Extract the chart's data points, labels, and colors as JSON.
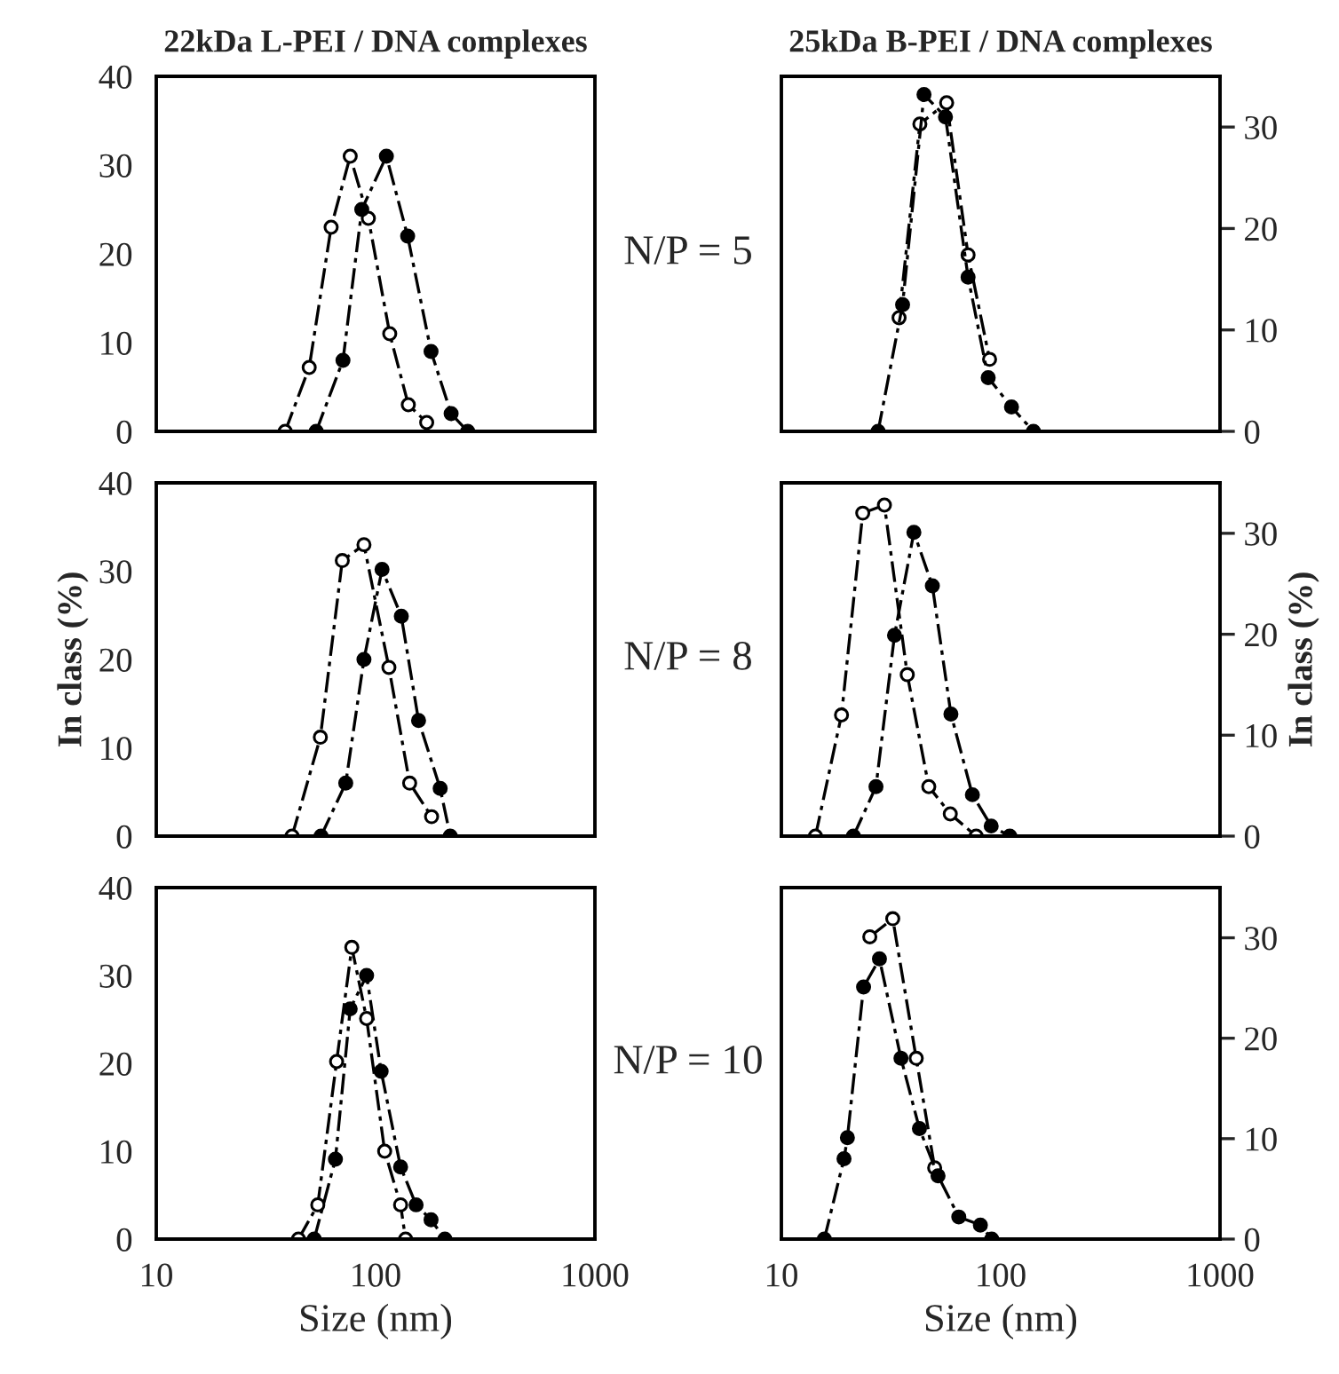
{
  "chart_data": [
    {
      "type": "line",
      "title": "22kDa L-PEI / DNA complexes",
      "annotations": [
        "N/P = 5"
      ],
      "log": "x",
      "xlim": [
        10,
        1000
      ],
      "xticks": [
        10,
        100,
        1000
      ],
      "ylim": [
        0,
        40
      ],
      "yticks": [
        0,
        10,
        20,
        30,
        40
      ],
      "tick_labels": "y",
      "marker": "circle",
      "line_style": "dashed",
      "grid": false,
      "legend": false,
      "series": [
        {
          "color": "#ffffff",
          "x": [
            38.7,
            49.8,
            62.7,
            76.6,
            92.7,
            116,
            141,
            171
          ],
          "values": [
            0,
            7.2,
            23,
            31,
            24,
            11,
            3,
            1
          ]
        },
        {
          "color": "#000000",
          "x": [
            53.6,
            71,
            86.5,
            112,
            140,
            179,
            221,
            263
          ],
          "values": [
            0,
            8,
            25,
            31,
            22,
            9,
            2,
            0
          ]
        }
      ]
    },
    {
      "type": "line",
      "title": "25kDa B-PEI / DNA complexes",
      "log": "x",
      "xlim": [
        10,
        1000
      ],
      "xticks": [
        10,
        100,
        1000
      ],
      "y2lim": [
        0,
        35
      ],
      "y2ticks": [
        0,
        10,
        20,
        30
      ],
      "tick_labels": "y",
      "marker": "circle",
      "line_style": "dashed",
      "grid": false,
      "legend": false,
      "series": [
        {
          "color": "#ffffff",
          "axis": "y2",
          "x": [
            34.4,
            42.8,
            56.7,
            71,
            89
          ],
          "values": [
            11.2,
            30.3,
            32.4,
            17.4,
            7.1
          ]
        },
        {
          "color": "#000000",
          "axis": "y2",
          "x": [
            27.6,
            35.7,
            44.7,
            56,
            71,
            87.7,
            112,
            141
          ],
          "values": [
            0,
            12.5,
            33.2,
            31,
            15.2,
            5.3,
            2.4,
            0
          ]
        }
      ]
    },
    {
      "type": "line",
      "ylabel": "In class (%)",
      "annotations": [
        "N/P = 8"
      ],
      "log": "x",
      "xlim": [
        10,
        1000
      ],
      "xticks": [
        10,
        100,
        1000
      ],
      "ylim": [
        0,
        40
      ],
      "yticks": [
        0,
        10,
        20,
        30,
        40
      ],
      "tick_labels": "y",
      "marker": "circle",
      "line_style": "dashed",
      "grid": false,
      "legend": false,
      "series": [
        {
          "color": "#ffffff",
          "x": [
            41.6,
            56,
            70.5,
            88.5,
            115,
            143,
            180
          ],
          "values": [
            0,
            11.2,
            31.2,
            33,
            19.1,
            6,
            2.2
          ]
        },
        {
          "color": "#000000",
          "x": [
            56.4,
            73.1,
            88.5,
            107,
            131,
            157,
            197,
            219
          ],
          "values": [
            0,
            6,
            20,
            30.2,
            24.9,
            13.1,
            5.4,
            0
          ]
        }
      ]
    },
    {
      "type": "line",
      "y2label": "In class (%)",
      "log": "x",
      "xlim": [
        10,
        1000
      ],
      "xticks": [
        10,
        100,
        1000
      ],
      "y2lim": [
        0,
        35
      ],
      "y2ticks": [
        0,
        10,
        20,
        30
      ],
      "tick_labels": "y",
      "marker": "circle",
      "line_style": "dashed",
      "grid": false,
      "legend": false,
      "series": [
        {
          "color": "#ffffff",
          "axis": "y2",
          "x": [
            14.3,
            18.8,
            23.5,
            29.5,
            37.5,
            47,
            58.9,
            77.3
          ],
          "values": [
            0,
            12,
            32,
            32.8,
            16,
            4.9,
            2.2,
            0
          ]
        },
        {
          "color": "#000000",
          "axis": "y2",
          "x": [
            21.3,
            27,
            32.8,
            40.2,
            48.8,
            59.3,
            74.3,
            90.5,
            110
          ],
          "values": [
            0,
            4.9,
            19.9,
            30.1,
            24.8,
            12.1,
            4.1,
            1,
            0
          ]
        }
      ]
    },
    {
      "type": "line",
      "xlabel": "Size (nm)",
      "annotations": [
        "N/P = 10"
      ],
      "log": "x",
      "xlim": [
        10,
        1000
      ],
      "xticks": [
        10,
        100,
        1000
      ],
      "ylim": [
        0,
        40
      ],
      "yticks": [
        0,
        10,
        20,
        30,
        40
      ],
      "marker": "circle",
      "line_style": "dashed",
      "grid": false,
      "legend": false,
      "series": [
        {
          "color": "#ffffff",
          "x": [
            44.5,
            54.5,
            66.4,
            77.9,
            91,
            110,
            130,
            137
          ],
          "values": [
            0,
            3.9,
            20.2,
            33.2,
            25.1,
            10,
            3.9,
            0
          ]
        },
        {
          "color": "#000000",
          "x": [
            52.5,
            65.6,
            76.6,
            91,
            106,
            130,
            153,
            179,
            207
          ],
          "values": [
            0,
            9.1,
            26.2,
            30,
            19.1,
            8.2,
            3.9,
            2.2,
            0
          ]
        }
      ]
    },
    {
      "type": "line",
      "xlabel": "Size (nm)",
      "log": "x",
      "xlim": [
        10,
        1000
      ],
      "xticks": [
        10,
        100,
        1000
      ],
      "y2lim": [
        0,
        35
      ],
      "y2ticks": [
        0,
        10,
        20,
        30
      ],
      "marker": "circle",
      "line_style": "dashed",
      "grid": false,
      "legend": false,
      "series": [
        {
          "color": "#ffffff",
          "axis": "y2",
          "x": [
            25.3,
            32.2,
            41.2,
            50
          ],
          "values": [
            30.1,
            31.9,
            18,
            7.1
          ]
        },
        {
          "color": "#000000",
          "axis": "y2",
          "x": [
            15.7,
            19.3,
            20,
            23.7,
            28,
            35.1,
            42.6,
            51.8,
            64.4,
            80.8,
            91
          ],
          "values": [
            0,
            8,
            10.1,
            25.1,
            27.9,
            18,
            11,
            6.3,
            2.2,
            1.4,
            0
          ]
        }
      ]
    }
  ]
}
